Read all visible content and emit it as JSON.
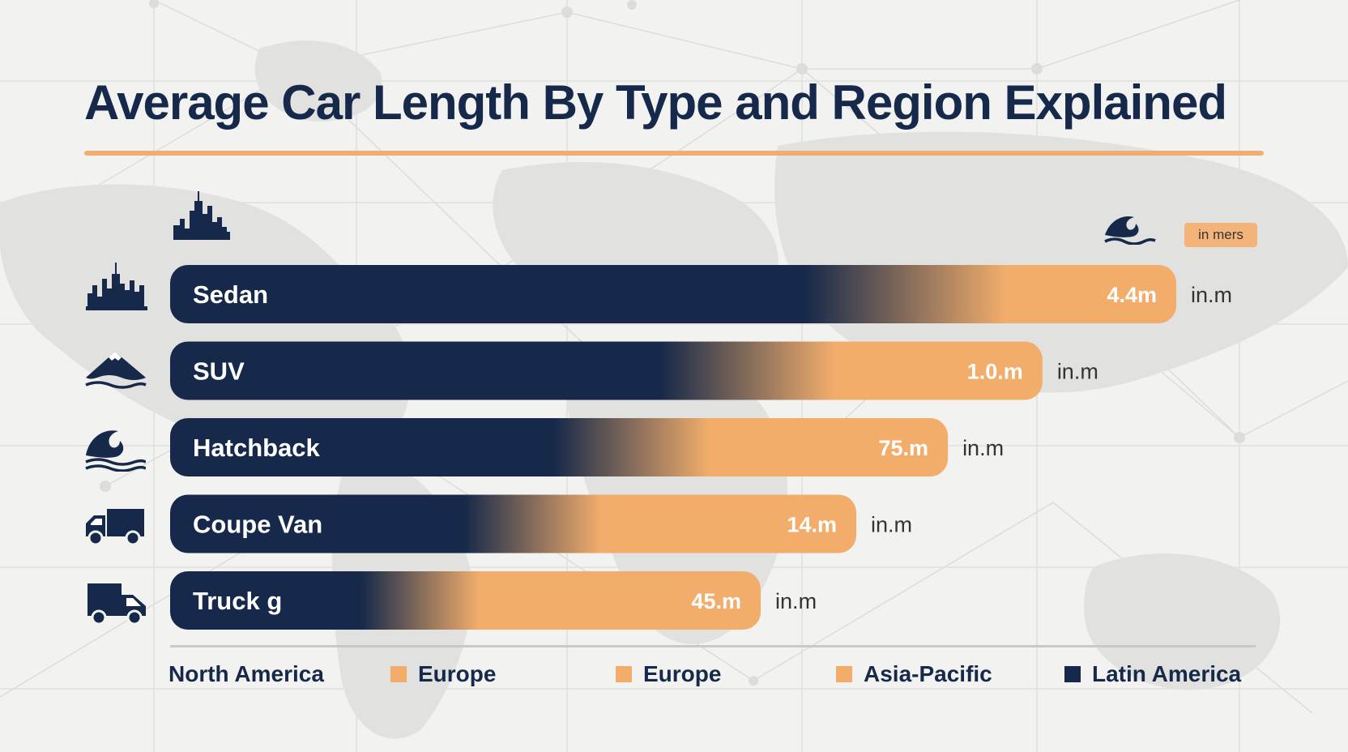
{
  "title": "Average Car Length By Type and Region Explained",
  "unit_badge": "in mers",
  "colors": {
    "navy": "#16294a",
    "orange": "#f2ad6b",
    "rule": "#f1ad6f",
    "text": "#333333"
  },
  "icons": {
    "header_left": "city-skyline-icon",
    "header_right": "wave-icon",
    "rows": [
      "city-skyline-icon",
      "mountain-icon",
      "wave-icon",
      "truck-icon",
      "van-icon"
    ]
  },
  "chart_data": {
    "type": "bar",
    "orientation": "horizontal",
    "categories": [
      "Sedan",
      "SUV",
      "Hatchback",
      "Coupe Van",
      "Truck  g"
    ],
    "value_labels": [
      "4.4m",
      "1.0.m",
      "75.m",
      "14.m",
      "45.m"
    ],
    "unit_labels": [
      "in.m",
      "in.m",
      "in.m",
      "in.m",
      "in.m"
    ],
    "relative_length": [
      1.0,
      0.867,
      0.773,
      0.682,
      0.587
    ],
    "navy_share": [
      0.631,
      0.562,
      0.493,
      0.428,
      0.323
    ]
  },
  "legend": [
    {
      "label": "North America",
      "swatch": "none"
    },
    {
      "label": "Europe",
      "swatch": "#f2ad6b"
    },
    {
      "label": "Europe",
      "swatch": "#f2ad6b"
    },
    {
      "label": "Asia-Pacific",
      "swatch": "#f2ad6b"
    },
    {
      "label": "Latin America",
      "swatch": "#16294a"
    }
  ]
}
